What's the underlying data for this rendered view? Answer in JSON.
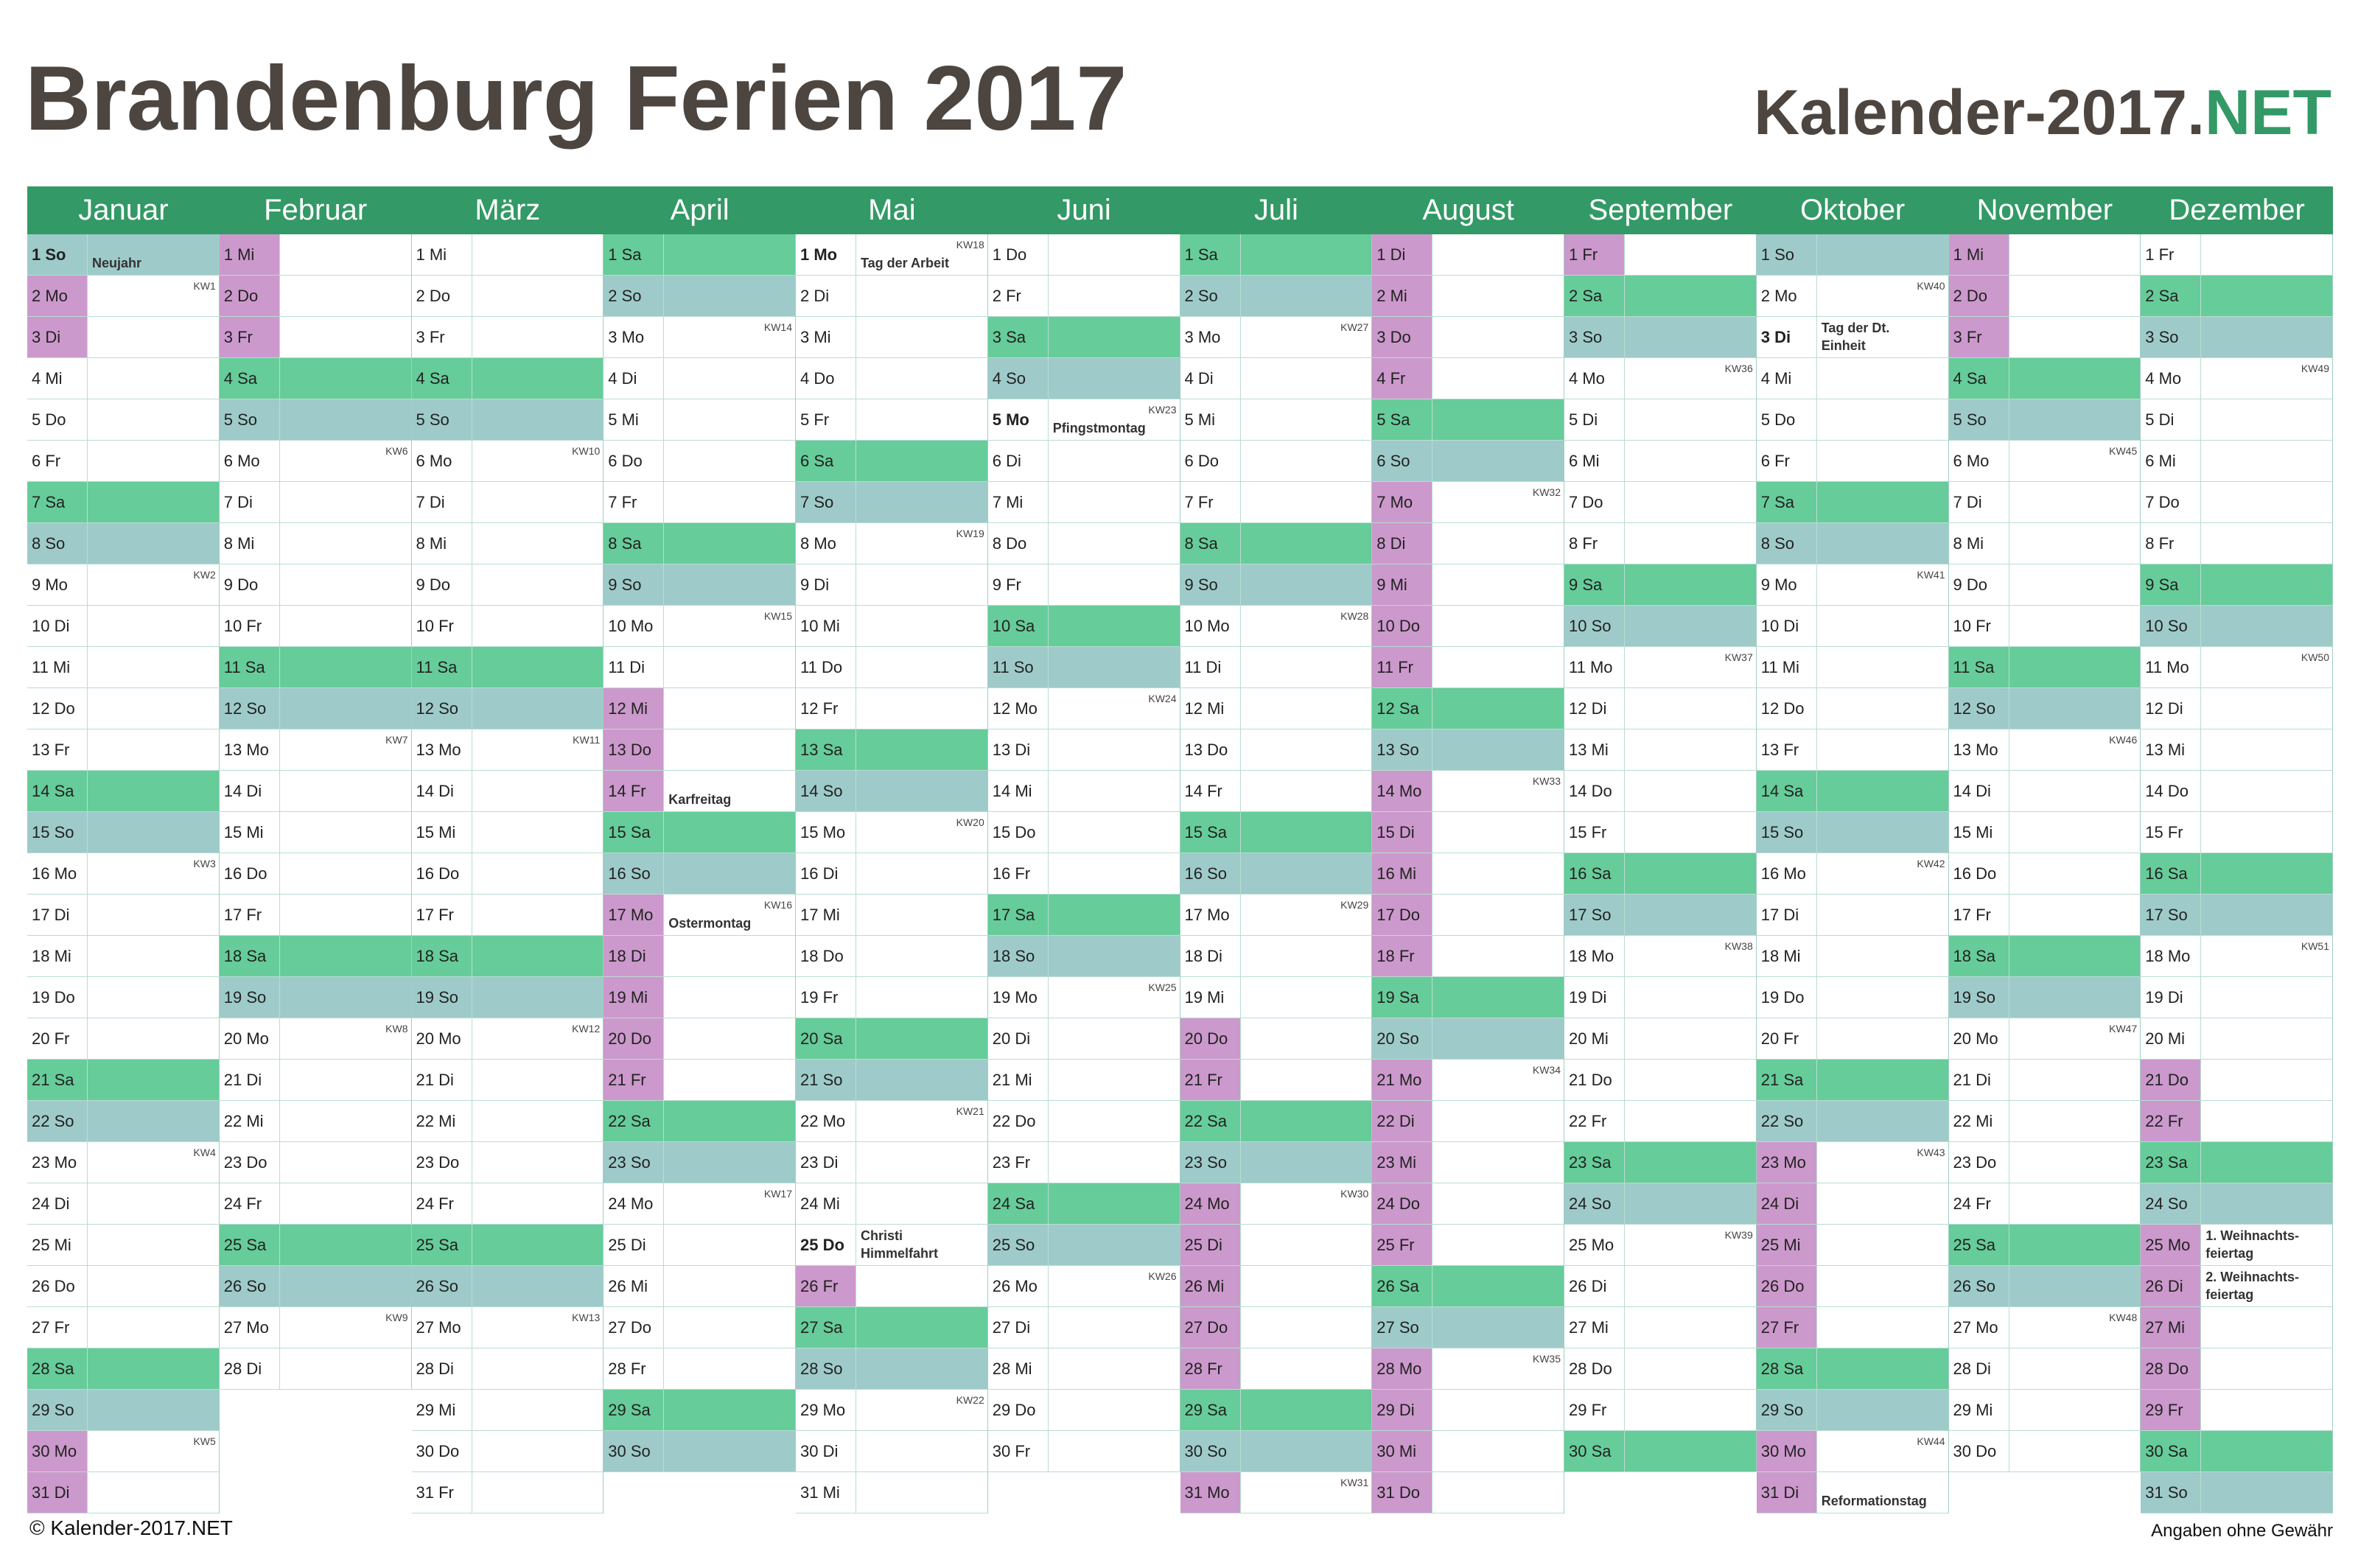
{
  "header": {
    "title": "Brandenburg Ferien 2017",
    "brand": "Kalender-2017.",
    "brand_accent": "NET"
  },
  "colors": {
    "header": "#339966",
    "saturday": "#66cc99",
    "sunday": "#9ecbc9",
    "ferien": "#cc99cc",
    "title": "#4d4540",
    "accent": "#339966"
  },
  "months": [
    {
      "name": "Januar",
      "first_saturday": 7,
      "days": [
        "1 So",
        "2 Mo",
        "3 Di",
        "4 Mi",
        "5 Do",
        "6 Fr",
        "7 Sa",
        "8 So",
        "9 Mo",
        "10 Di",
        "11 Mi",
        "12 Do",
        "13 Fr",
        "14 Sa",
        "15 So",
        "16 Mo",
        "17 Di",
        "18 Mi",
        "19 Do",
        "20 Fr",
        "21 Sa",
        "22 So",
        "23 Mo",
        "24 Di",
        "25 Mi",
        "26 Do",
        "27 Fr",
        "28 Sa",
        "29 So",
        "30 Mo",
        "31 Di"
      ],
      "kw": [
        "KW1",
        "KW2",
        "KW3",
        "KW4",
        "KW5"
      ],
      "ferien": [
        2,
        3,
        30,
        31
      ],
      "holidays": [
        {
          "day": 1,
          "note": [
            "Neujahr"
          ],
          "bold": true
        }
      ]
    },
    {
      "name": "Februar",
      "first_saturday": 4,
      "days": [
        "1 Mi",
        "2 Do",
        "3 Fr",
        "4 Sa",
        "5 So",
        "6 Mo",
        "7 Di",
        "8 Mi",
        "9 Do",
        "10 Fr",
        "11 Sa",
        "12 So",
        "13 Mo",
        "14 Di",
        "15 Mi",
        "16 Do",
        "17 Fr",
        "18 Sa",
        "19 So",
        "20 Mo",
        "21 Di",
        "22 Mi",
        "23 Do",
        "24 Fr",
        "25 Sa",
        "26 So",
        "27 Mo",
        "28 Di"
      ],
      "kw": [
        "KW6",
        "KW7",
        "KW8",
        "KW9"
      ],
      "ferien": [
        1,
        2,
        3
      ],
      "holidays": []
    },
    {
      "name": "März",
      "first_saturday": 4,
      "days": [
        "1 Mi",
        "2 Do",
        "3 Fr",
        "4 Sa",
        "5 So",
        "6 Mo",
        "7 Di",
        "8 Mi",
        "9 Do",
        "10 Fr",
        "11 Sa",
        "12 So",
        "13 Mo",
        "14 Di",
        "15 Mi",
        "16 Do",
        "17 Fr",
        "18 Sa",
        "19 So",
        "20 Mo",
        "21 Di",
        "22 Mi",
        "23 Do",
        "24 Fr",
        "25 Sa",
        "26 So",
        "27 Mo",
        "28 Di",
        "29 Mi",
        "30 Do",
        "31 Fr"
      ],
      "kw": [
        "KW10",
        "KW11",
        "KW12",
        "KW13"
      ],
      "ferien": [],
      "holidays": []
    },
    {
      "name": "April",
      "first_saturday": 1,
      "days": [
        "1 Sa",
        "2 So",
        "3 Mo",
        "4 Di",
        "5 Mi",
        "6 Do",
        "7 Fr",
        "8 Sa",
        "9 So",
        "10 Mo",
        "11 Di",
        "12 Mi",
        "13 Do",
        "14 Fr",
        "15 Sa",
        "16 So",
        "17 Mo",
        "18 Di",
        "19 Mi",
        "20 Do",
        "21 Fr",
        "22 Sa",
        "23 So",
        "24 Mo",
        "25 Di",
        "26 Mi",
        "27 Do",
        "28 Fr",
        "29 Sa",
        "30 So"
      ],
      "kw": [
        "KW14",
        "KW15",
        "KW16",
        "KW17"
      ],
      "ferien": [
        12,
        13,
        14,
        17,
        18,
        19,
        20,
        21
      ],
      "holidays": [
        {
          "day": 14,
          "note": [
            "Karfreitag"
          ],
          "bold": false
        },
        {
          "day": 17,
          "note": [
            "Ostermontag"
          ],
          "bold": false
        }
      ]
    },
    {
      "name": "Mai",
      "first_saturday": 6,
      "days": [
        "1 Mo",
        "2 Di",
        "3 Mi",
        "4 Do",
        "5 Fr",
        "6 Sa",
        "7 So",
        "8 Mo",
        "9 Di",
        "10 Mi",
        "11 Do",
        "12 Fr",
        "13 Sa",
        "14 So",
        "15 Mo",
        "16 Di",
        "17 Mi",
        "18 Do",
        "19 Fr",
        "20 Sa",
        "21 So",
        "22 Mo",
        "23 Di",
        "24 Mi",
        "25 Do",
        "26 Fr",
        "27 Sa",
        "28 So",
        "29 Mo",
        "30 Di",
        "31 Mi"
      ],
      "kw": [
        "KW18",
        "KW19",
        "KW20",
        "KW21",
        "KW22"
      ],
      "ferien": [
        26
      ],
      "holidays": [
        {
          "day": 1,
          "note": [
            "Tag der Arbeit"
          ],
          "bold": true
        },
        {
          "day": 25,
          "note": [
            "Christi",
            "Himmelfahrt"
          ],
          "bold": true
        }
      ]
    },
    {
      "name": "Juni",
      "first_saturday": 3,
      "days": [
        "1 Do",
        "2 Fr",
        "3 Sa",
        "4 So",
        "5 Mo",
        "6 Di",
        "7 Mi",
        "8 Do",
        "9 Fr",
        "10 Sa",
        "11 So",
        "12 Mo",
        "13 Di",
        "14 Mi",
        "15 Do",
        "16 Fr",
        "17 Sa",
        "18 So",
        "19 Mo",
        "20 Di",
        "21 Mi",
        "22 Do",
        "23 Fr",
        "24 Sa",
        "25 So",
        "26 Mo",
        "27 Di",
        "28 Mi",
        "29 Do",
        "30 Fr"
      ],
      "kw": [
        "KW23",
        "KW24",
        "KW25",
        "KW26"
      ],
      "ferien": [],
      "holidays": [
        {
          "day": 5,
          "note": [
            "Pfingstmontag"
          ],
          "bold": true
        }
      ]
    },
    {
      "name": "Juli",
      "first_saturday": 1,
      "days": [
        "1 Sa",
        "2 So",
        "3 Mo",
        "4 Di",
        "5 Mi",
        "6 Do",
        "7 Fr",
        "8 Sa",
        "9 So",
        "10 Mo",
        "11 Di",
        "12 Mi",
        "13 Do",
        "14 Fr",
        "15 Sa",
        "16 So",
        "17 Mo",
        "18 Di",
        "19 Mi",
        "20 Do",
        "21 Fr",
        "22 Sa",
        "23 So",
        "24 Mo",
        "25 Di",
        "26 Mi",
        "27 Do",
        "28 Fr",
        "29 Sa",
        "30 So",
        "31 Mo"
      ],
      "kw": [
        "KW27",
        "KW28",
        "KW29",
        "KW30",
        "KW31"
      ],
      "ferien": [
        20,
        21,
        24,
        25,
        26,
        27,
        28,
        31
      ],
      "holidays": []
    },
    {
      "name": "August",
      "first_saturday": 5,
      "days": [
        "1 Di",
        "2 Mi",
        "3 Do",
        "4 Fr",
        "5 Sa",
        "6 So",
        "7 Mo",
        "8 Di",
        "9 Mi",
        "10 Do",
        "11 Fr",
        "12 Sa",
        "13 So",
        "14 Mo",
        "15 Di",
        "16 Mi",
        "17 Do",
        "18 Fr",
        "19 Sa",
        "20 So",
        "21 Mo",
        "22 Di",
        "23 Mi",
        "24 Do",
        "25 Fr",
        "26 Sa",
        "27 So",
        "28 Mo",
        "29 Di",
        "30 Mi",
        "31 Do"
      ],
      "kw": [
        "KW32",
        "KW33",
        "KW34",
        "KW35"
      ],
      "ferien": [
        1,
        2,
        3,
        4,
        7,
        8,
        9,
        10,
        11,
        14,
        15,
        16,
        17,
        18,
        21,
        22,
        23,
        24,
        25,
        28,
        29,
        30,
        31
      ],
      "holidays": []
    },
    {
      "name": "September",
      "first_saturday": 2,
      "days": [
        "1 Fr",
        "2 Sa",
        "3 So",
        "4 Mo",
        "5 Di",
        "6 Mi",
        "7 Do",
        "8 Fr",
        "9 Sa",
        "10 So",
        "11 Mo",
        "12 Di",
        "13 Mi",
        "14 Do",
        "15 Fr",
        "16 Sa",
        "17 So",
        "18 Mo",
        "19 Di",
        "20 Mi",
        "21 Do",
        "22 Fr",
        "23 Sa",
        "24 So",
        "25 Mo",
        "26 Di",
        "27 Mi",
        "28 Do",
        "29 Fr",
        "30 Sa"
      ],
      "kw": [
        "KW36",
        "KW37",
        "KW38",
        "KW39"
      ],
      "ferien": [
        1
      ],
      "holidays": []
    },
    {
      "name": "Oktober",
      "first_saturday": 7,
      "days": [
        "1 So",
        "2 Mo",
        "3 Di",
        "4 Mi",
        "5 Do",
        "6 Fr",
        "7 Sa",
        "8 So",
        "9 Mo",
        "10 Di",
        "11 Mi",
        "12 Do",
        "13 Fr",
        "14 Sa",
        "15 So",
        "16 Mo",
        "17 Di",
        "18 Mi",
        "19 Do",
        "20 Fr",
        "21 Sa",
        "22 So",
        "23 Mo",
        "24 Di",
        "25 Mi",
        "26 Do",
        "27 Fr",
        "28 Sa",
        "29 So",
        "30 Mo",
        "31 Di"
      ],
      "kw": [
        "KW40",
        "KW41",
        "KW42",
        "KW43",
        "KW44"
      ],
      "ferien": [
        23,
        24,
        25,
        26,
        27,
        30,
        31
      ],
      "holidays": [
        {
          "day": 3,
          "note": [
            "Tag der Dt.",
            "Einheit"
          ],
          "bold": true
        },
        {
          "day": 31,
          "note": [
            "Reformationstag"
          ],
          "bold": false
        }
      ]
    },
    {
      "name": "November",
      "first_saturday": 4,
      "days": [
        "1 Mi",
        "2 Do",
        "3 Fr",
        "4 Sa",
        "5 So",
        "6 Mo",
        "7 Di",
        "8 Mi",
        "9 Do",
        "10 Fr",
        "11 Sa",
        "12 So",
        "13 Mo",
        "14 Di",
        "15 Mi",
        "16 Do",
        "17 Fr",
        "18 Sa",
        "19 So",
        "20 Mo",
        "21 Di",
        "22 Mi",
        "23 Do",
        "24 Fr",
        "25 Sa",
        "26 So",
        "27 Mo",
        "28 Di",
        "29 Mi",
        "30 Do"
      ],
      "kw": [
        "KW45",
        "KW46",
        "KW47",
        "KW48"
      ],
      "ferien": [
        1,
        2,
        3
      ],
      "holidays": []
    },
    {
      "name": "Dezember",
      "first_saturday": 2,
      "days": [
        "1 Fr",
        "2 Sa",
        "3 So",
        "4 Mo",
        "5 Di",
        "6 Mi",
        "7 Do",
        "8 Fr",
        "9 Sa",
        "10 So",
        "11 Mo",
        "12 Di",
        "13 Mi",
        "14 Do",
        "15 Fr",
        "16 Sa",
        "17 So",
        "18 Mo",
        "19 Di",
        "20 Mi",
        "21 Do",
        "22 Fr",
        "23 Sa",
        "24 So",
        "25 Mo",
        "26 Di",
        "27 Mi",
        "28 Do",
        "29 Fr",
        "30 Sa",
        "31 So"
      ],
      "kw": [
        "KW49",
        "KW50",
        "KW51"
      ],
      "ferien": [
        21,
        22,
        25,
        26,
        27,
        28,
        29
      ],
      "holidays": [
        {
          "day": 25,
          "note": [
            "1. Weihnachts-",
            "feiertag"
          ],
          "bold": false
        },
        {
          "day": 26,
          "note": [
            "2. Weihnachts-",
            "feiertag"
          ],
          "bold": false
        }
      ]
    }
  ],
  "footer": {
    "left": "© Kalender-2017.NET",
    "right": "Angaben ohne Gewähr"
  }
}
